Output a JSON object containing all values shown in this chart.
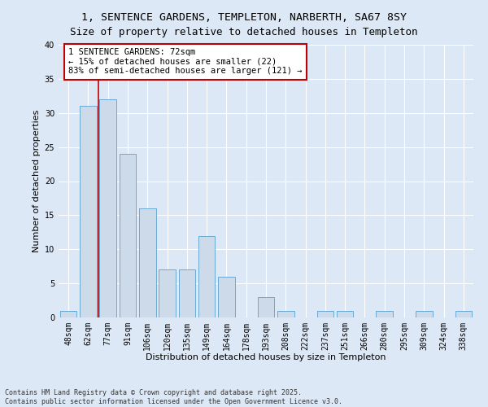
{
  "title": "1, SENTENCE GARDENS, TEMPLETON, NARBERTH, SA67 8SY",
  "subtitle": "Size of property relative to detached houses in Templeton",
  "xlabel": "Distribution of detached houses by size in Templeton",
  "ylabel": "Number of detached properties",
  "categories": [
    "48sqm",
    "62sqm",
    "77sqm",
    "91sqm",
    "106sqm",
    "120sqm",
    "135sqm",
    "149sqm",
    "164sqm",
    "178sqm",
    "193sqm",
    "208sqm",
    "222sqm",
    "237sqm",
    "251sqm",
    "266sqm",
    "280sqm",
    "295sqm",
    "309sqm",
    "324sqm",
    "338sqm"
  ],
  "values": [
    1,
    31,
    32,
    24,
    16,
    7,
    7,
    12,
    6,
    0,
    3,
    1,
    0,
    1,
    1,
    0,
    1,
    0,
    1,
    0,
    1
  ],
  "bar_color": "#ccdaea",
  "bar_edge_color": "#6aaad4",
  "highlight_line_color": "#c00000",
  "annotation_text": "1 SENTENCE GARDENS: 72sqm\n← 15% of detached houses are smaller (22)\n83% of semi-detached houses are larger (121) →",
  "annotation_box_color": "#ffffff",
  "annotation_border_color": "#c00000",
  "ylim": [
    0,
    40
  ],
  "yticks": [
    0,
    5,
    10,
    15,
    20,
    25,
    30,
    35,
    40
  ],
  "background_color": "#dce8f5",
  "plot_bg_color": "#dce8f5",
  "grid_color": "#ffffff",
  "footer_text": "Contains HM Land Registry data © Crown copyright and database right 2025.\nContains public sector information licensed under the Open Government Licence v3.0.",
  "title_fontsize": 9.5,
  "axis_label_fontsize": 8,
  "tick_fontsize": 7,
  "annotation_fontsize": 7.5,
  "footer_fontsize": 6
}
